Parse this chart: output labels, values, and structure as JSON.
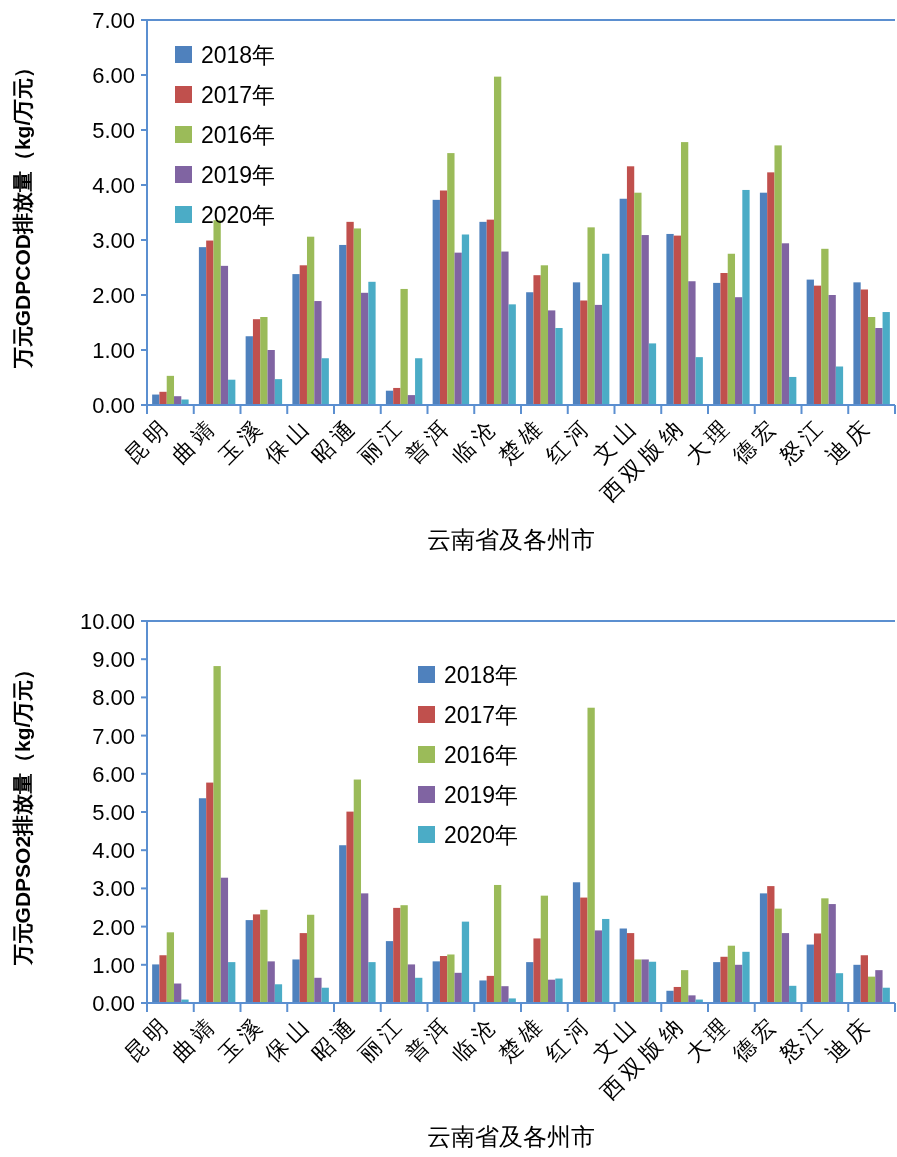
{
  "chart_data": [
    {
      "type": "bar",
      "xlabel": "云南省及各州市",
      "ylabel": "万元GDPCOD排放量（kg/万元）",
      "categories": [
        "昆明",
        "曲靖",
        "玉溪",
        "保山",
        "昭通",
        "丽江",
        "普洱",
        "临沧",
        "楚雄",
        "红河",
        "文山",
        "西双版纳",
        "大理",
        "德宏",
        "怒江",
        "迪庆"
      ],
      "series": [
        {
          "name": "2018年",
          "color": "#4f81bd",
          "values": [
            0.19,
            2.87,
            1.25,
            2.38,
            2.91,
            0.26,
            3.73,
            3.33,
            2.05,
            2.23,
            3.75,
            3.11,
            2.22,
            3.86,
            2.28,
            2.23
          ]
        },
        {
          "name": "2017年",
          "color": "#c0504d",
          "values": [
            0.24,
            2.99,
            1.56,
            2.54,
            3.33,
            0.31,
            3.9,
            3.37,
            2.36,
            1.9,
            4.34,
            3.08,
            2.4,
            4.23,
            2.17,
            2.1
          ]
        },
        {
          "name": "2016年",
          "color": "#9bbb59",
          "values": [
            0.53,
            3.36,
            1.6,
            3.06,
            3.21,
            2.11,
            4.58,
            5.97,
            2.54,
            3.23,
            3.86,
            4.78,
            2.75,
            4.72,
            2.84,
            1.6
          ]
        },
        {
          "name": "2019年",
          "color": "#8064a2",
          "values": [
            0.16,
            2.53,
            1.0,
            1.89,
            2.04,
            0.18,
            2.77,
            2.79,
            1.72,
            1.82,
            3.09,
            2.25,
            1.96,
            2.94,
            2.0,
            1.4
          ]
        },
        {
          "name": "2020年",
          "color": "#4bacc6",
          "values": [
            0.1,
            0.46,
            0.47,
            0.85,
            2.24,
            0.85,
            3.1,
            1.83,
            1.4,
            2.75,
            1.12,
            0.87,
            3.91,
            0.51,
            0.7,
            1.69
          ]
        }
      ],
      "ylim": [
        0,
        7
      ],
      "yticks": [
        {
          "value": 0,
          "label": "0.00"
        },
        {
          "value": 1,
          "label": "1.00"
        },
        {
          "value": 2,
          "label": "2.00"
        },
        {
          "value": 3,
          "label": "3.00"
        },
        {
          "value": 4,
          "label": "4.00"
        },
        {
          "value": 5,
          "label": "5.00"
        },
        {
          "value": 6,
          "label": "6.00"
        },
        {
          "value": 7,
          "label": "7.00"
        }
      ],
      "legend": "top left",
      "grid": false
    },
    {
      "type": "bar",
      "xlabel": "云南省及各州市",
      "ylabel": "万元GDPSO2排放量（kg/万元）",
      "categories": [
        "昆明",
        "曲靖",
        "玉溪",
        "保山",
        "昭通",
        "丽江",
        "普洱",
        "临沧",
        "楚雄",
        "红河",
        "文山",
        "西双版纳",
        "大理",
        "德宏",
        "怒江",
        "迪庆"
      ],
      "series": [
        {
          "name": "2018年",
          "color": "#4f81bd",
          "values": [
            1.01,
            5.36,
            2.17,
            1.14,
            4.13,
            1.62,
            1.09,
            0.59,
            1.07,
            3.16,
            1.95,
            0.32,
            1.07,
            2.87,
            1.53,
            1.0
          ]
        },
        {
          "name": "2017年",
          "color": "#c0504d",
          "values": [
            1.25,
            5.77,
            2.32,
            1.83,
            5.01,
            2.49,
            1.23,
            0.71,
            1.69,
            2.76,
            1.83,
            0.42,
            1.21,
            3.06,
            1.82,
            1.25
          ]
        },
        {
          "name": "2016年",
          "color": "#9bbb59",
          "values": [
            1.85,
            8.82,
            2.44,
            2.31,
            5.85,
            2.56,
            1.27,
            3.09,
            2.81,
            7.73,
            1.14,
            0.86,
            1.5,
            2.47,
            2.74,
            0.69
          ]
        },
        {
          "name": "2019年",
          "color": "#8064a2",
          "values": [
            0.51,
            3.28,
            1.09,
            0.66,
            2.87,
            1.01,
            0.79,
            0.44,
            0.61,
            1.9,
            1.14,
            0.2,
            1.0,
            1.83,
            2.59,
            0.86
          ]
        },
        {
          "name": "2020年",
          "color": "#4bacc6",
          "values": [
            0.09,
            1.07,
            0.49,
            0.4,
            1.07,
            0.66,
            2.13,
            0.12,
            0.64,
            2.2,
            1.08,
            0.09,
            1.34,
            0.45,
            0.78,
            0.4
          ]
        }
      ],
      "ylim": [
        0,
        10
      ],
      "yticks": [
        {
          "value": 0,
          "label": "0.00"
        },
        {
          "value": 1,
          "label": "1.00"
        },
        {
          "value": 2,
          "label": "2.00"
        },
        {
          "value": 3,
          "label": "3.00"
        },
        {
          "value": 4,
          "label": "4.00"
        },
        {
          "value": 5,
          "label": "5.00"
        },
        {
          "value": 6,
          "label": "6.00"
        },
        {
          "value": 7,
          "label": "7.00"
        },
        {
          "value": 8,
          "label": "8.00"
        },
        {
          "value": 9,
          "label": "9.00"
        },
        {
          "value": 10,
          "label": "10.00"
        }
      ],
      "legend": "top",
      "grid": false
    }
  ]
}
